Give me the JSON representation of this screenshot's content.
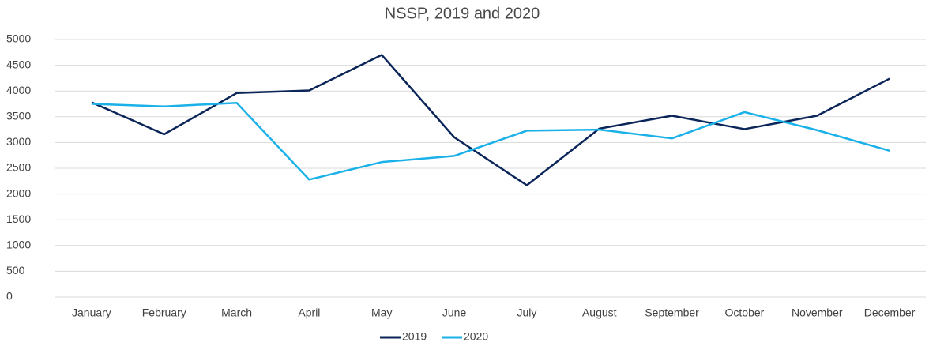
{
  "chart_data": {
    "type": "line",
    "title": "NSSP, 2019 and 2020",
    "categories": [
      "January",
      "February",
      "March",
      "April",
      "May",
      "June",
      "July",
      "August",
      "September",
      "October",
      "November",
      "December"
    ],
    "series": [
      {
        "name": "2019",
        "color": "#0b2559",
        "values": [
          3780,
          3160,
          3960,
          4010,
          4700,
          3100,
          2170,
          3270,
          3520,
          3260,
          3520,
          4240
        ]
      },
      {
        "name": "2020",
        "color": "#1ab0e8",
        "values": [
          3750,
          3700,
          3770,
          2280,
          2620,
          2740,
          3230,
          3250,
          3080,
          3590,
          3240,
          2840
        ]
      }
    ],
    "ylim": [
      0,
      5000
    ],
    "yticks": [
      0,
      500,
      1000,
      1500,
      2000,
      2500,
      3000,
      3500,
      4000,
      4500,
      5000
    ],
    "grid": true,
    "legend": "bottom"
  }
}
